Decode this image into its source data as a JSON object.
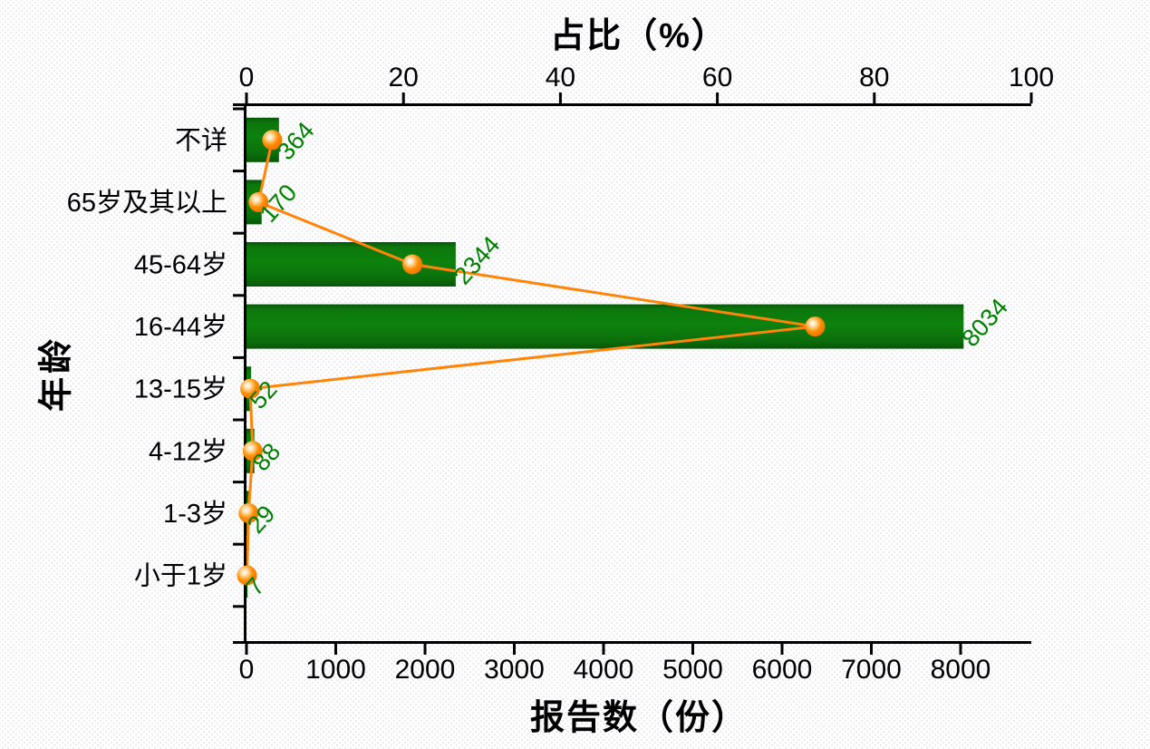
{
  "chart_data": {
    "type": "bar",
    "orientation": "horizontal",
    "title": "",
    "ylabel": "年龄",
    "categories": [
      "不详",
      "65岁及其以上",
      "45-64岁",
      "16-44岁",
      "13-15岁",
      "4-12岁",
      "1-3岁",
      "小于1岁"
    ],
    "series": [
      {
        "name": "报告数",
        "type": "bar",
        "axis": "bottom",
        "values": [
          364,
          170,
          2344,
          8034,
          52,
          88,
          29,
          7
        ],
        "data_labels": [
          "364",
          "170",
          "2344",
          "8034",
          "52",
          "88",
          "29",
          "7"
        ]
      },
      {
        "name": "占比",
        "type": "line",
        "axis": "top",
        "values_percent": [
          3.28,
          1.53,
          21.14,
          72.46,
          0.47,
          0.79,
          0.26,
          0.06
        ]
      }
    ],
    "bottom_axis": {
      "label": "报告数（份）",
      "ticks": [
        0,
        1000,
        2000,
        3000,
        4000,
        5000,
        6000,
        7000,
        8000
      ],
      "range": [
        0,
        8790
      ]
    },
    "top_axis": {
      "label": "占比（%）",
      "ticks": [
        0,
        20,
        40,
        60,
        80,
        100
      ],
      "range": [
        0,
        100
      ]
    },
    "legend": "none",
    "grid": false,
    "colors": {
      "bar_main": "#0d820d",
      "bar_edge_dark": "#085708",
      "value_label": "#008000",
      "line": "#ff8408",
      "marker": "#ff8c00",
      "marker_highlight": "#ffffff",
      "axis": "#000000",
      "tick_label": "#000000"
    }
  }
}
